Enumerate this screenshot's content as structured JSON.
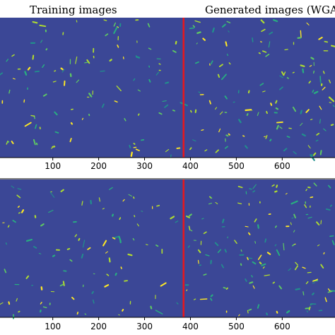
{
  "chart_data": [
    {
      "type": "heatmap",
      "panel": "top",
      "annotations": [
        "Training images",
        "Generated images (WGA"
      ],
      "xticks": [
        100,
        200,
        300,
        400,
        500,
        600
      ],
      "xlim": [
        -15,
        715
      ],
      "divider_x": 385,
      "background_value": 0,
      "colormap": "viridis",
      "grid": false
    },
    {
      "type": "heatmap",
      "panel": "bottom",
      "xticks": [
        100,
        200,
        300,
        400,
        500,
        600
      ],
      "xlim": [
        -15,
        715
      ],
      "divider_x": 385,
      "background_value": 0,
      "colormap": "viridis",
      "grid": false
    }
  ],
  "colors": {
    "background": "#3b4796",
    "divider": "#e8171d",
    "sparks": [
      "#fde725",
      "#addc30",
      "#5ec962",
      "#28ae80",
      "#21918c",
      "#b5de2b"
    ]
  }
}
